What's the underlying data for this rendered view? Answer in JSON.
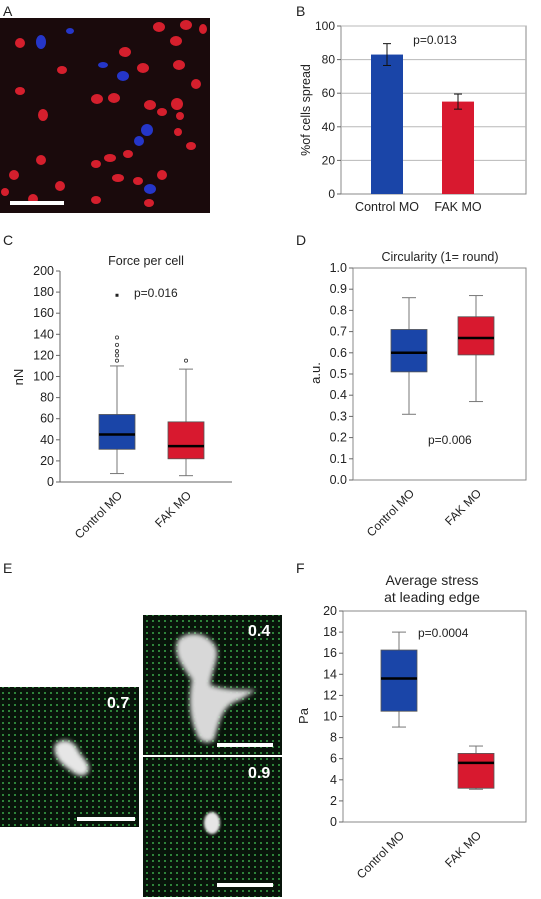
{
  "colors": {
    "control": "#1a45a8",
    "fak": "#d8192f",
    "micrograph_bg": "#1a0a0c",
    "nucleus_red": "#d51f2d",
    "nucleus_blue": "#2536c9",
    "grid_green": "#3aa64a"
  },
  "panels": {
    "A": {
      "letter": "A"
    },
    "B": {
      "letter": "B"
    },
    "C": {
      "letter": "C"
    },
    "D": {
      "letter": "D"
    },
    "E": {
      "letter": "E",
      "labels": [
        "0.4",
        "0.7",
        "0.9"
      ]
    },
    "F": {
      "letter": "F"
    }
  },
  "chart_data": [
    {
      "panel": "B",
      "type": "bar",
      "ylabel": "%of cells spread",
      "categories": [
        "Control MO",
        "FAK MO"
      ],
      "values": [
        83,
        55
      ],
      "errors": [
        6.5,
        4.5
      ],
      "ylim": [
        0,
        100
      ],
      "yticks": [
        0,
        20,
        40,
        60,
        80,
        100
      ],
      "annotation": "p=0.013",
      "grid": true
    },
    {
      "panel": "C",
      "type": "box",
      "title": "Force per cell",
      "ylabel": "nN",
      "categories": [
        "Control MO",
        "FAK MO"
      ],
      "boxes": [
        {
          "min": 8,
          "q1": 31,
          "median": 45,
          "q3": 64,
          "max": 110,
          "outliers": [
            115,
            120,
            124,
            130,
            137,
            177
          ]
        },
        {
          "min": 6,
          "q1": 22,
          "median": 34,
          "q3": 57,
          "max": 107,
          "outliers": [
            115
          ]
        }
      ],
      "ylim": [
        0,
        200
      ],
      "yticks": [
        0,
        20,
        40,
        60,
        80,
        100,
        120,
        140,
        160,
        180,
        200
      ],
      "annotation": "p=0.016"
    },
    {
      "panel": "D",
      "type": "box",
      "title": "Circularity (1= round)",
      "ylabel": "a.u.",
      "categories": [
        "Control MO",
        "FAK MO"
      ],
      "boxes": [
        {
          "min": 0.31,
          "q1": 0.51,
          "median": 0.6,
          "q3": 0.71,
          "max": 0.86
        },
        {
          "min": 0.37,
          "q1": 0.59,
          "median": 0.67,
          "q3": 0.77,
          "max": 0.87
        }
      ],
      "ylim": [
        0,
        1.0
      ],
      "yticks": [
        "0.0",
        "0.1",
        "0.2",
        "0.3",
        "0.4",
        "0.5",
        "0.6",
        "0.7",
        "0.8",
        "0.9",
        "1.0"
      ],
      "annotation": "p=0.006"
    },
    {
      "panel": "F",
      "type": "box",
      "title": [
        "Average stress",
        "at leading edge"
      ],
      "ylabel": "Pa",
      "categories": [
        "Control MO",
        "FAK MO"
      ],
      "boxes": [
        {
          "min": 9.0,
          "q1": 10.5,
          "median": 13.6,
          "q3": 16.3,
          "max": 18.0
        },
        {
          "min": 3.1,
          "q1": 3.2,
          "median": 5.6,
          "q3": 6.5,
          "max": 7.2
        }
      ],
      "ylim": [
        0,
        20
      ],
      "yticks": [
        0,
        2,
        4,
        6,
        8,
        10,
        12,
        14,
        16,
        18,
        20
      ],
      "annotation": "p=0.0004"
    }
  ]
}
